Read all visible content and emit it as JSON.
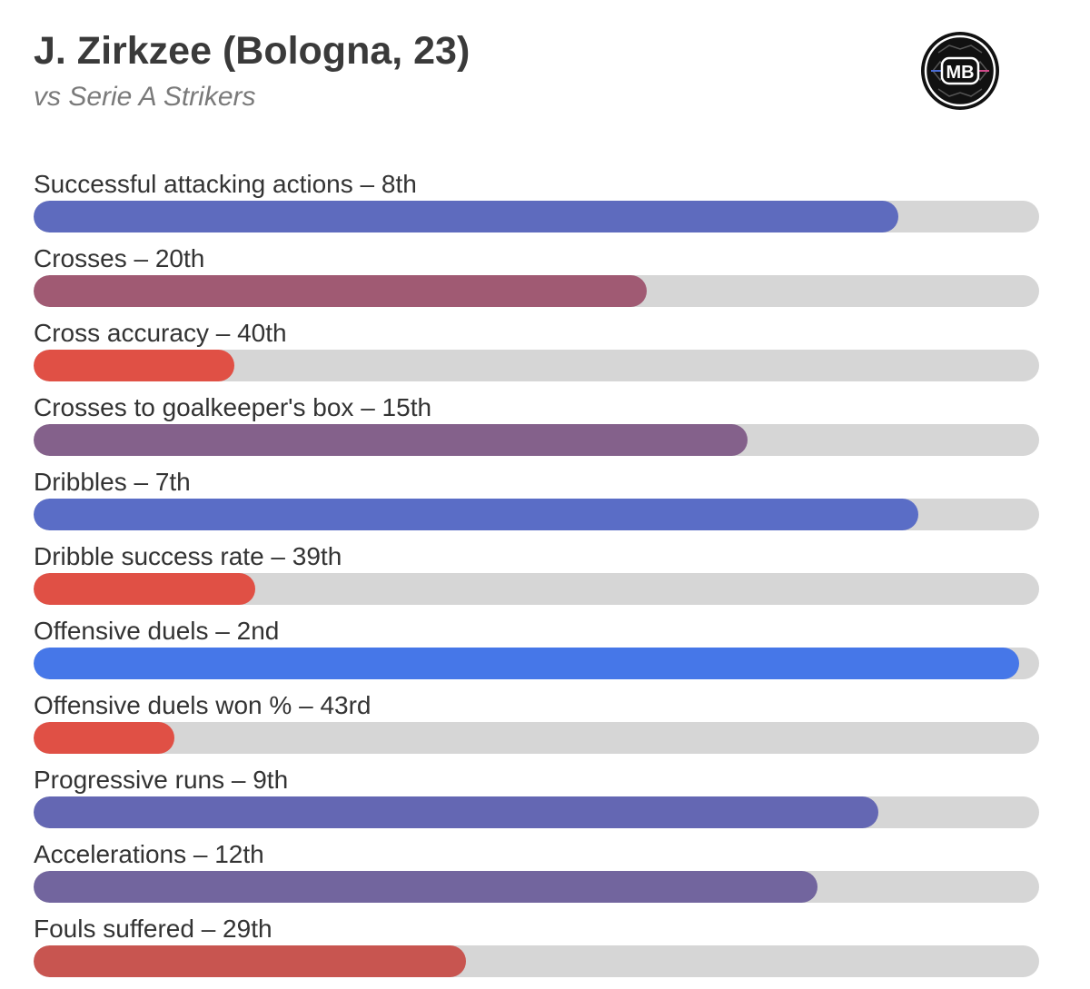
{
  "header": {
    "title": "J. Zirkzee (Bologna, 23)",
    "subtitle": "vs Serie A Strikers",
    "logo_text": "MB"
  },
  "chart_data": {
    "type": "bar",
    "orientation": "horizontal",
    "value_unit": "percentile",
    "xlim": [
      0,
      100
    ],
    "grid": false,
    "categories": [
      "Successful attacking actions – 8th",
      "Crosses – 20th",
      "Cross accuracy – 40th",
      "Crosses to goalkeeper's box – 15th",
      "Dribbles – 7th",
      "Dribble success rate – 39th",
      "Offensive duels – 2nd",
      "Offensive duels won % – 43rd",
      "Progressive runs – 9th",
      "Accelerations – 12th",
      "Fouls suffered – 29th"
    ],
    "values": [
      86,
      61,
      20,
      71,
      88,
      22,
      98,
      14,
      84,
      78,
      43
    ],
    "colors": [
      "#5E6BBE",
      "#A05A73",
      "#E05045",
      "#84618B",
      "#5A6DC6",
      "#E05045",
      "#4677E8",
      "#E05045",
      "#6467B3",
      "#72659E",
      "#C85550"
    ],
    "track_color": "#d6d6d6"
  }
}
